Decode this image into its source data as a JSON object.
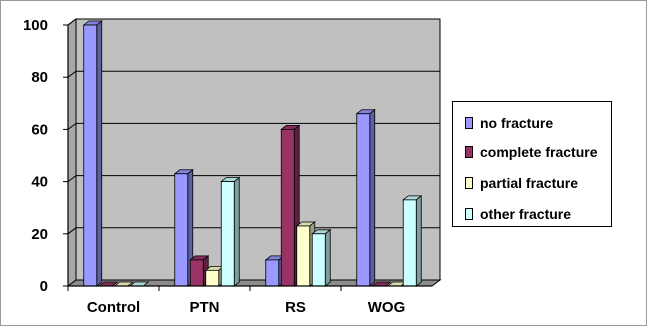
{
  "chart_data": {
    "type": "bar",
    "title": "",
    "xlabel": "",
    "ylabel": "",
    "categories": [
      "Control",
      "PTN",
      "RS",
      "WOG"
    ],
    "ylim": [
      0,
      100
    ],
    "yticks": [
      "0",
      "20",
      "40",
      "60",
      "80",
      "100"
    ],
    "grid": true,
    "legend_position": "right",
    "series": [
      {
        "name": "no fracture",
        "color": "#9999ff",
        "values": [
          100,
          43,
          10,
          66
        ]
      },
      {
        "name": "complete fracture",
        "color": "#993366",
        "values": [
          0,
          10,
          60,
          0
        ]
      },
      {
        "name": "partial fracture",
        "color": "#ffffcc",
        "values": [
          0,
          6,
          23,
          0
        ]
      },
      {
        "name": "other fracture",
        "color": "#ccffff",
        "values": [
          0,
          40,
          20,
          33
        ]
      }
    ]
  }
}
